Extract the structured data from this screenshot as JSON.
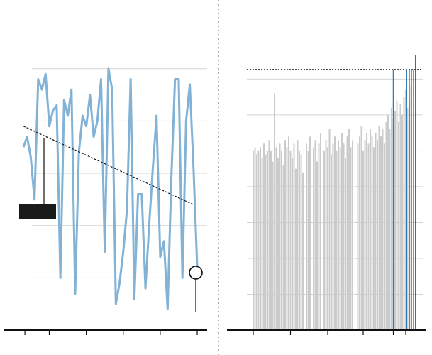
{
  "chart_data": [
    {
      "type": "line",
      "x": [
        0,
        1,
        2,
        3,
        4,
        5,
        6,
        7,
        8,
        9,
        10,
        11,
        12,
        13,
        14,
        15,
        16,
        17,
        18,
        19,
        20,
        21,
        22,
        23,
        24,
        25,
        26,
        27,
        28,
        29,
        30,
        31,
        32,
        33,
        34,
        35,
        36,
        37,
        38,
        39,
        40,
        41,
        42,
        43,
        44,
        45,
        46,
        47
      ],
      "series": [
        {
          "color": "#82b2d6",
          "values": [
            3.5,
            3.7,
            3.3,
            2.5,
            4.8,
            4.6,
            4.9,
            3.9,
            4.2,
            4.3,
            1.0,
            4.4,
            4.1,
            4.6,
            0.7,
            3.4,
            4.1,
            3.9,
            4.5,
            3.7,
            4.0,
            4.8,
            1.5,
            5.0,
            4.6,
            0.5,
            0.9,
            1.5,
            2.3,
            4.8,
            0.6,
            2.6,
            2.6,
            0.8,
            2.0,
            3.1,
            4.1,
            1.4,
            1.7,
            0.4,
            2.9,
            4.8,
            4.8,
            1.0,
            4.0,
            4.7,
            3.1,
            1.2
          ]
        }
      ],
      "trendline": {
        "x": [
          0,
          46
        ],
        "values": [
          3.9,
          2.4
        ]
      },
      "xlim": [
        0,
        47
      ],
      "xticks": [
        0.4,
        7,
        17,
        27,
        37,
        47
      ],
      "ylim": [
        0,
        5.2
      ],
      "yticks": [
        1,
        2,
        3,
        4,
        5
      ],
      "grid": true
    },
    {
      "type": "bar",
      "x": [
        0,
        1,
        2,
        3,
        4,
        5,
        6,
        7,
        8,
        9,
        10,
        11,
        12,
        13,
        14,
        15,
        16,
        17,
        18,
        19,
        20,
        21,
        22,
        23,
        24,
        25,
        26,
        27,
        28,
        29,
        30,
        31,
        32,
        33,
        34,
        35,
        36,
        37,
        38,
        39,
        40,
        41,
        42,
        43,
        44,
        45,
        46,
        47,
        48,
        49,
        50,
        51,
        52,
        53,
        54,
        55,
        56,
        57,
        58,
        59,
        60,
        61,
        62,
        63,
        64,
        65,
        66,
        67,
        68,
        69,
        70,
        71,
        72,
        73,
        74,
        75,
        76,
        77,
        78,
        79,
        80,
        81,
        82,
        83,
        84,
        85,
        86,
        87,
        88,
        89
      ],
      "color": "#cbcbcb",
      "values": [
        5.0,
        5.1,
        4.9,
        5.0,
        5.1,
        4.8,
        5.2,
        4.9,
        5.0,
        5.3,
        5.0,
        4.7,
        6.6,
        5.1,
        4.8,
        5.2,
        5.0,
        4.6,
        5.3,
        5.1,
        5.4,
        5.0,
        4.8,
        5.2,
        4.5,
        5.3,
        5.0,
        4.9,
        4.4,
        null,
        5.2,
        5.0,
        5.4,
        null,
        5.1,
        5.3,
        4.7,
        5.2,
        5.5,
        null,
        5.0,
        5.3,
        5.1,
        5.6,
        4.9,
        5.2,
        5.4,
        5.0,
        5.3,
        5.1,
        5.5,
        5.2,
        4.8,
        5.4,
        5.6,
        5.1,
        5.3,
        null,
        null,
        5.2,
        5.4,
        5.7,
        5.0,
        5.3,
        5.5,
        5.2,
        5.6,
        5.4,
        5.1,
        5.5,
        5.3,
        5.7,
        5.4,
        5.6,
        5.2,
        5.8,
        6.0,
        5.6,
        6.2,
        5.9,
        6.1,
        6.4,
        5.8,
        6.3,
        6.0,
        6.5,
        6.7,
        6.2,
        6.4,
        6.8
      ],
      "highlights": {
        "x": [
          79,
          86.5,
          88,
          89.2,
          90.4,
          91.6
        ],
        "values": [
          7.27,
          7.27,
          7.27,
          7.27,
          7.27,
          7.66
        ],
        "colors": [
          "#3a78b0",
          "#3a78b0",
          "#3a78b0",
          "#3a78b0",
          "#3a78b0",
          "#333333"
        ]
      },
      "refline": 7.27,
      "xlim": [
        0,
        92
      ],
      "xticks": [
        0,
        21,
        42,
        62,
        79,
        86
      ],
      "ylim": [
        0,
        7.7
      ],
      "yticks": [
        1,
        2,
        3,
        4,
        5,
        6,
        7
      ],
      "grid": true
    }
  ]
}
